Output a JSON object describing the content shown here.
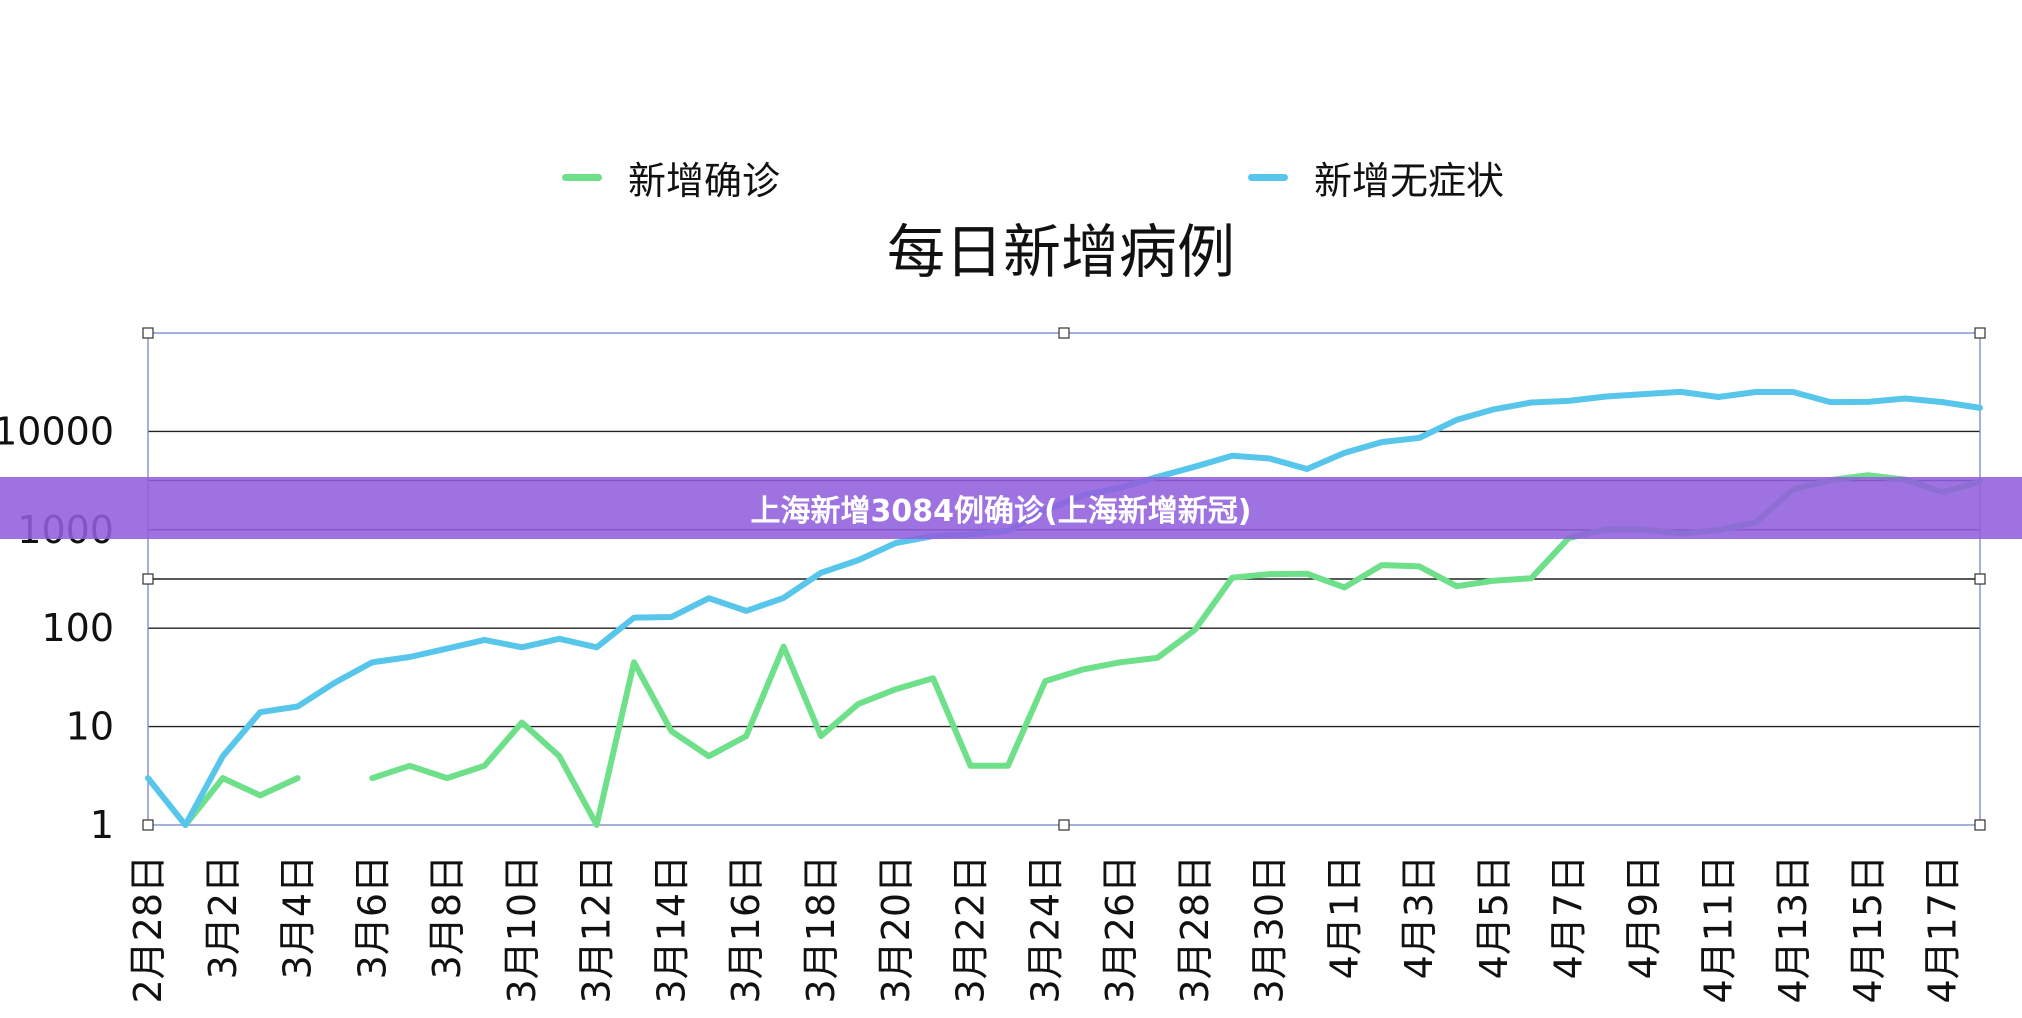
{
  "banner": {
    "text": "上海新增3084例确诊(上海新增新冠)"
  },
  "chart_data": {
    "type": "line",
    "title": "每日新增病例",
    "yscale": "log",
    "ylim": [
      1,
      100000
    ],
    "yticks": [
      1,
      10,
      100,
      1000,
      10000
    ],
    "ytick_labels": [
      "1",
      "10",
      "100",
      "1000",
      "10000"
    ],
    "x": [
      "2月28日",
      "3月1日",
      "3月2日",
      "3月3日",
      "3月4日",
      "3月5日",
      "3月6日",
      "3月7日",
      "3月8日",
      "3月9日",
      "3月10日",
      "3月11日",
      "3月12日",
      "3月13日",
      "3月14日",
      "3月15日",
      "3月16日",
      "3月17日",
      "3月18日",
      "3月19日",
      "3月20日",
      "3月21日",
      "3月22日",
      "3月23日",
      "3月24日",
      "3月25日",
      "3月26日",
      "3月27日",
      "3月28日",
      "3月29日",
      "3月30日",
      "3月31日",
      "4月1日",
      "4月2日",
      "4月3日",
      "4月4日",
      "4月5日",
      "4月6日",
      "4月7日",
      "4月8日",
      "4月9日",
      "4月10日",
      "4月11日",
      "4月12日",
      "4月13日",
      "4月14日",
      "4月15日",
      "4月16日",
      "4月17日",
      "4月18日"
    ],
    "xtick_labels": [
      "2月28日",
      "3月2日",
      "3月4日",
      "3月6日",
      "3月8日",
      "3月10日",
      "3月12日",
      "3月14日",
      "3月16日",
      "3月18日",
      "3月20日",
      "3月22日",
      "3月24日",
      "3月26日",
      "3月28日",
      "3月30日",
      "4月1日",
      "4月3日",
      "4月5日",
      "4月7日",
      "4月9日",
      "4月11日",
      "4月13日",
      "4月15日",
      "4月17日"
    ],
    "series": [
      {
        "name": "新增确诊",
        "color": "#6ee08a",
        "values": [
          null,
          1,
          3,
          2,
          3,
          null,
          3,
          4,
          3,
          4,
          11,
          5,
          1,
          45,
          9,
          5,
          8,
          65,
          8,
          17,
          24,
          31,
          4,
          4,
          29,
          38,
          45,
          50,
          96,
          326,
          355,
          358,
          260,
          438,
          425,
          267,
          304,
          322,
          824,
          1015,
          1006,
          914,
          994,
          1189,
          2573,
          3200,
          3590,
          3238,
          2417,
          3084
        ]
      },
      {
        "name": "新增无症状",
        "color": "#57c6ea",
        "values": [
          3,
          1,
          5,
          14,
          16,
          28,
          45,
          51,
          62,
          76,
          64,
          78,
          64,
          128,
          130,
          202,
          150,
          203,
          366,
          492,
          734,
          865,
          896,
          977,
          1582,
          2231,
          2676,
          3450,
          4381,
          5656,
          5298,
          4144,
          6051,
          7788,
          8581,
          13086,
          16766,
          19660,
          20398,
          22609,
          23937,
          25173,
          22348,
          25141,
          25146,
          19872,
          19923,
          21582,
          19831,
          17332
        ]
      }
    ],
    "legend": "top",
    "grid": "horizontal"
  }
}
